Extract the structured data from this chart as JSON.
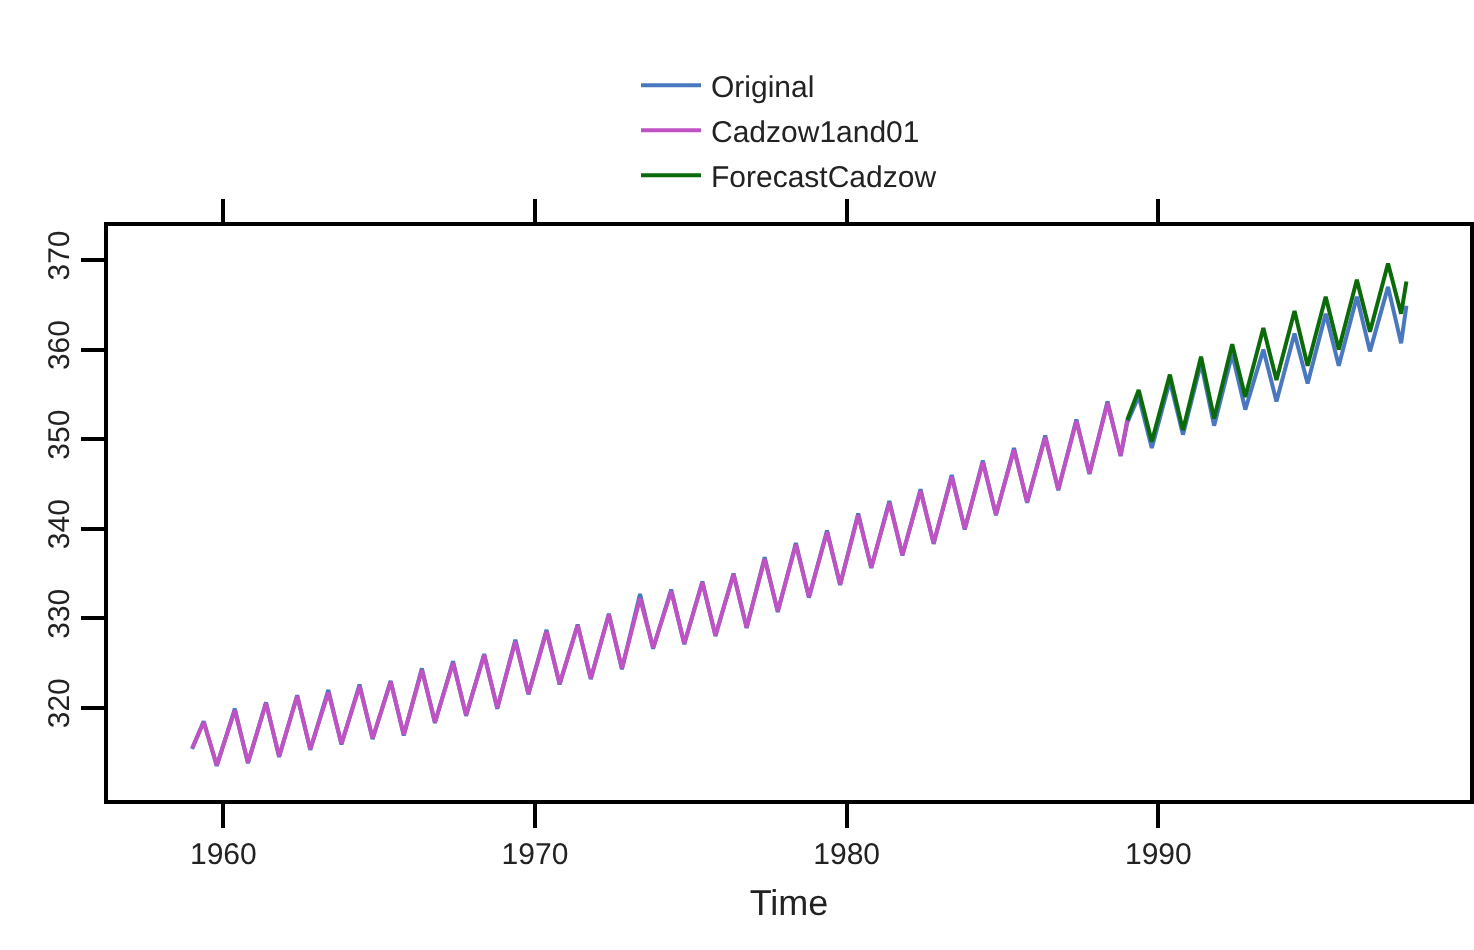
{
  "chart_data": {
    "type": "line",
    "xlabel": "Time",
    "xlim": [
      1956.3,
      2000
    ],
    "ylim": [
      309.7,
      373.8
    ],
    "xticks": [
      1960,
      1970,
      1980,
      1990
    ],
    "yticks": [
      320,
      330,
      340,
      350,
      360,
      370
    ],
    "grid": false,
    "legend": "top",
    "marker": "none",
    "line_style": "solid",
    "series": [
      {
        "name": "Original",
        "color": "#4a78c0",
        "x": [
          1959.0,
          1959.37,
          1959.79,
          1960.37,
          1960.79,
          1961.37,
          1961.79,
          1962.37,
          1962.79,
          1963.37,
          1963.79,
          1964.37,
          1964.79,
          1965.37,
          1965.79,
          1966.37,
          1966.79,
          1967.37,
          1967.79,
          1968.37,
          1968.79,
          1969.37,
          1969.79,
          1970.37,
          1970.79,
          1971.37,
          1971.79,
          1972.37,
          1972.79,
          1973.37,
          1973.79,
          1974.37,
          1974.79,
          1975.37,
          1975.79,
          1976.37,
          1976.79,
          1977.37,
          1977.79,
          1978.37,
          1978.79,
          1979.37,
          1979.79,
          1980.37,
          1980.79,
          1981.37,
          1981.79,
          1982.37,
          1982.79,
          1983.37,
          1983.79,
          1984.37,
          1984.79,
          1985.37,
          1985.79,
          1986.37,
          1986.79,
          1987.37,
          1987.79,
          1988.37,
          1988.79,
          1989.0,
          1989.37,
          1989.79,
          1990.37,
          1990.79,
          1991.37,
          1991.79,
          1992.37,
          1992.79,
          1993.37,
          1993.79,
          1994.37,
          1994.79,
          1995.37,
          1995.79,
          1996.37,
          1996.79,
          1997.37,
          1997.79,
          1997.96
        ],
        "values": [
          315.4,
          318.5,
          313.5,
          319.9,
          313.8,
          320.6,
          314.5,
          321.4,
          315.3,
          322.0,
          315.9,
          322.6,
          316.5,
          323.0,
          316.9,
          324.4,
          318.3,
          325.2,
          319.1,
          326.0,
          319.9,
          327.6,
          321.5,
          328.7,
          322.6,
          329.3,
          323.2,
          330.5,
          324.3,
          332.7,
          326.6,
          333.2,
          327.1,
          334.1,
          328.0,
          335.0,
          328.9,
          336.8,
          330.7,
          338.4,
          332.3,
          339.8,
          333.7,
          341.7,
          335.6,
          343.1,
          337.0,
          344.4,
          338.3,
          346.0,
          339.9,
          347.6,
          341.5,
          349.0,
          342.9,
          350.4,
          344.3,
          352.2,
          346.1,
          354.2,
          348.1,
          351.8,
          354.8,
          349.0,
          356.5,
          350.5,
          358.5,
          351.5,
          359.5,
          353.3,
          360.0,
          354.2,
          361.8,
          356.2,
          364.0,
          358.2,
          365.9,
          359.8,
          367.0,
          360.7,
          364.9
        ]
      },
      {
        "name": "Cadzow1and01",
        "color": "#c052c4",
        "x": [
          1959.0,
          1959.37,
          1959.79,
          1960.37,
          1960.79,
          1961.37,
          1961.79,
          1962.37,
          1962.79,
          1963.37,
          1963.79,
          1964.37,
          1964.79,
          1965.37,
          1965.79,
          1966.37,
          1966.79,
          1967.37,
          1967.79,
          1968.37,
          1968.79,
          1969.37,
          1969.79,
          1970.37,
          1970.79,
          1971.37,
          1971.79,
          1972.37,
          1972.79,
          1973.37,
          1973.79,
          1974.37,
          1974.79,
          1975.37,
          1975.79,
          1976.37,
          1976.79,
          1977.37,
          1977.79,
          1978.37,
          1978.79,
          1979.37,
          1979.79,
          1980.37,
          1980.79,
          1981.37,
          1981.79,
          1982.37,
          1982.79,
          1983.37,
          1983.79,
          1984.37,
          1984.79,
          1985.37,
          1985.79,
          1986.37,
          1986.79,
          1987.37,
          1987.79,
          1988.37,
          1988.79,
          1989.0
        ],
        "values": [
          315.5,
          318.4,
          313.6,
          319.7,
          313.9,
          320.5,
          314.6,
          321.3,
          315.4,
          321.7,
          316.0,
          322.4,
          316.6,
          322.9,
          317.0,
          324.2,
          318.4,
          325.0,
          319.2,
          325.9,
          320.0,
          327.4,
          321.6,
          328.5,
          322.7,
          329.2,
          323.3,
          330.4,
          324.4,
          332.2,
          326.7,
          333.0,
          327.2,
          334.0,
          328.1,
          334.9,
          329.0,
          336.6,
          330.8,
          338.2,
          332.4,
          339.6,
          333.8,
          341.5,
          335.7,
          342.9,
          337.1,
          344.2,
          338.4,
          345.8,
          340.0,
          347.4,
          341.6,
          348.8,
          343.0,
          350.2,
          344.4,
          352.0,
          346.2,
          354.0,
          348.2,
          352.1
        ]
      },
      {
        "name": "ForecastCadzow",
        "color": "#0b6b0b",
        "x": [
          1989.0,
          1989.37,
          1989.79,
          1990.37,
          1990.79,
          1991.37,
          1991.79,
          1992.37,
          1992.79,
          1993.37,
          1993.79,
          1994.37,
          1994.79,
          1995.37,
          1995.79,
          1996.37,
          1996.79,
          1997.37,
          1997.79,
          1997.96
        ],
        "values": [
          352.1,
          355.5,
          349.7,
          357.2,
          351.0,
          359.2,
          352.3,
          360.6,
          354.7,
          362.4,
          356.6,
          364.3,
          358.2,
          365.9,
          360.0,
          367.8,
          362.0,
          369.6,
          364.0,
          367.6
        ]
      }
    ]
  }
}
